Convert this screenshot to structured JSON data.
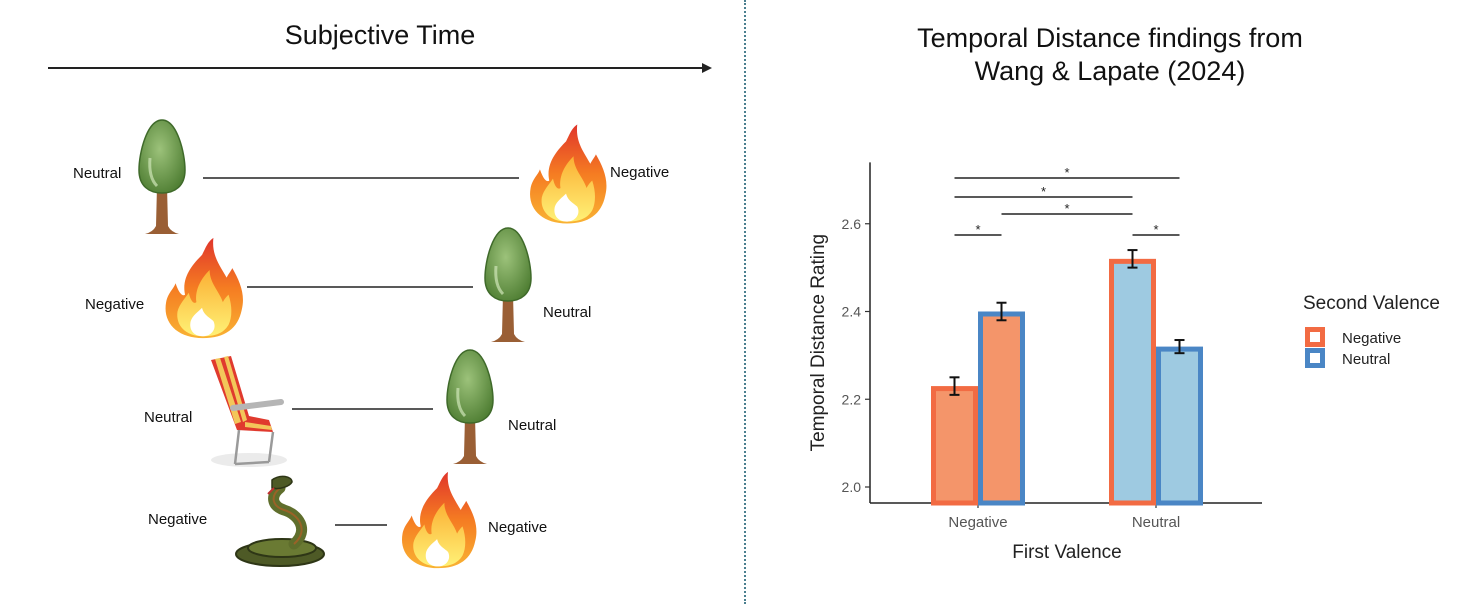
{
  "left_panel": {
    "title": "Subjective Time",
    "rows": [
      {
        "first": {
          "label": "Neutral",
          "icon": "tree-icon"
        },
        "second": {
          "label": "Negative",
          "icon": "fire-icon"
        },
        "distance": "long"
      },
      {
        "first": {
          "label": "Negative",
          "icon": "fire-icon"
        },
        "second": {
          "label": "Neutral",
          "icon": "tree-icon"
        },
        "distance": "medium"
      },
      {
        "first": {
          "label": "Neutral",
          "icon": "beach-chair-icon"
        },
        "second": {
          "label": "Neutral",
          "icon": "tree-icon"
        },
        "distance": "medium"
      },
      {
        "first": {
          "label": "Negative",
          "icon": "snake-icon"
        },
        "second": {
          "label": "Negative",
          "icon": "fire-icon"
        },
        "distance": "short"
      }
    ]
  },
  "chart_data": {
    "type": "bar",
    "title": "Temporal Distance findings from Wang & Lapate (2024)",
    "title_lines": [
      "Temporal Distance findings from",
      "Wang & Lapate (2024)"
    ],
    "xlabel": "First Valence",
    "ylabel": "Temporal Distance Rating",
    "categories": [
      "Negative",
      "Neutral"
    ],
    "ylim": [
      1.97,
      2.74
    ],
    "yticks": [
      2.0,
      2.2,
      2.4,
      2.6
    ],
    "ytick_labels": [
      "2.0",
      "2.2",
      "2.4",
      "2.6"
    ],
    "grid": false,
    "legend": {
      "title": "Second Valence",
      "position": "right",
      "entries": [
        "Negative",
        "Neutral"
      ]
    },
    "series": [
      {
        "name": "Negative",
        "values": [
          2.23,
          2.52
        ],
        "errors": [
          0.02,
          0.02
        ]
      },
      {
        "name": "Neutral",
        "values": [
          2.4,
          2.32
        ],
        "errors": [
          0.02,
          0.015
        ]
      }
    ],
    "fill_colors_by_first_valence": {
      "Negative": "#f4956a",
      "Neutral": "#9ecae1"
    },
    "border_colors_by_second_valence": {
      "Negative": "#f26b43",
      "Neutral": "#4a86c5"
    },
    "significance": [
      {
        "from": "Negative/Negative",
        "to": "Neutral/Neutral",
        "label": "*"
      },
      {
        "from": "Negative/Negative",
        "to": "Neutral/Negative",
        "label": "*"
      },
      {
        "from": "Negative/Neutral",
        "to": "Neutral/Negative",
        "label": "*"
      },
      {
        "from": "Negative/Negative",
        "to": "Negative/Neutral",
        "label": "*"
      },
      {
        "from": "Neutral/Negative",
        "to": "Neutral/Neutral",
        "label": "*"
      }
    ]
  }
}
